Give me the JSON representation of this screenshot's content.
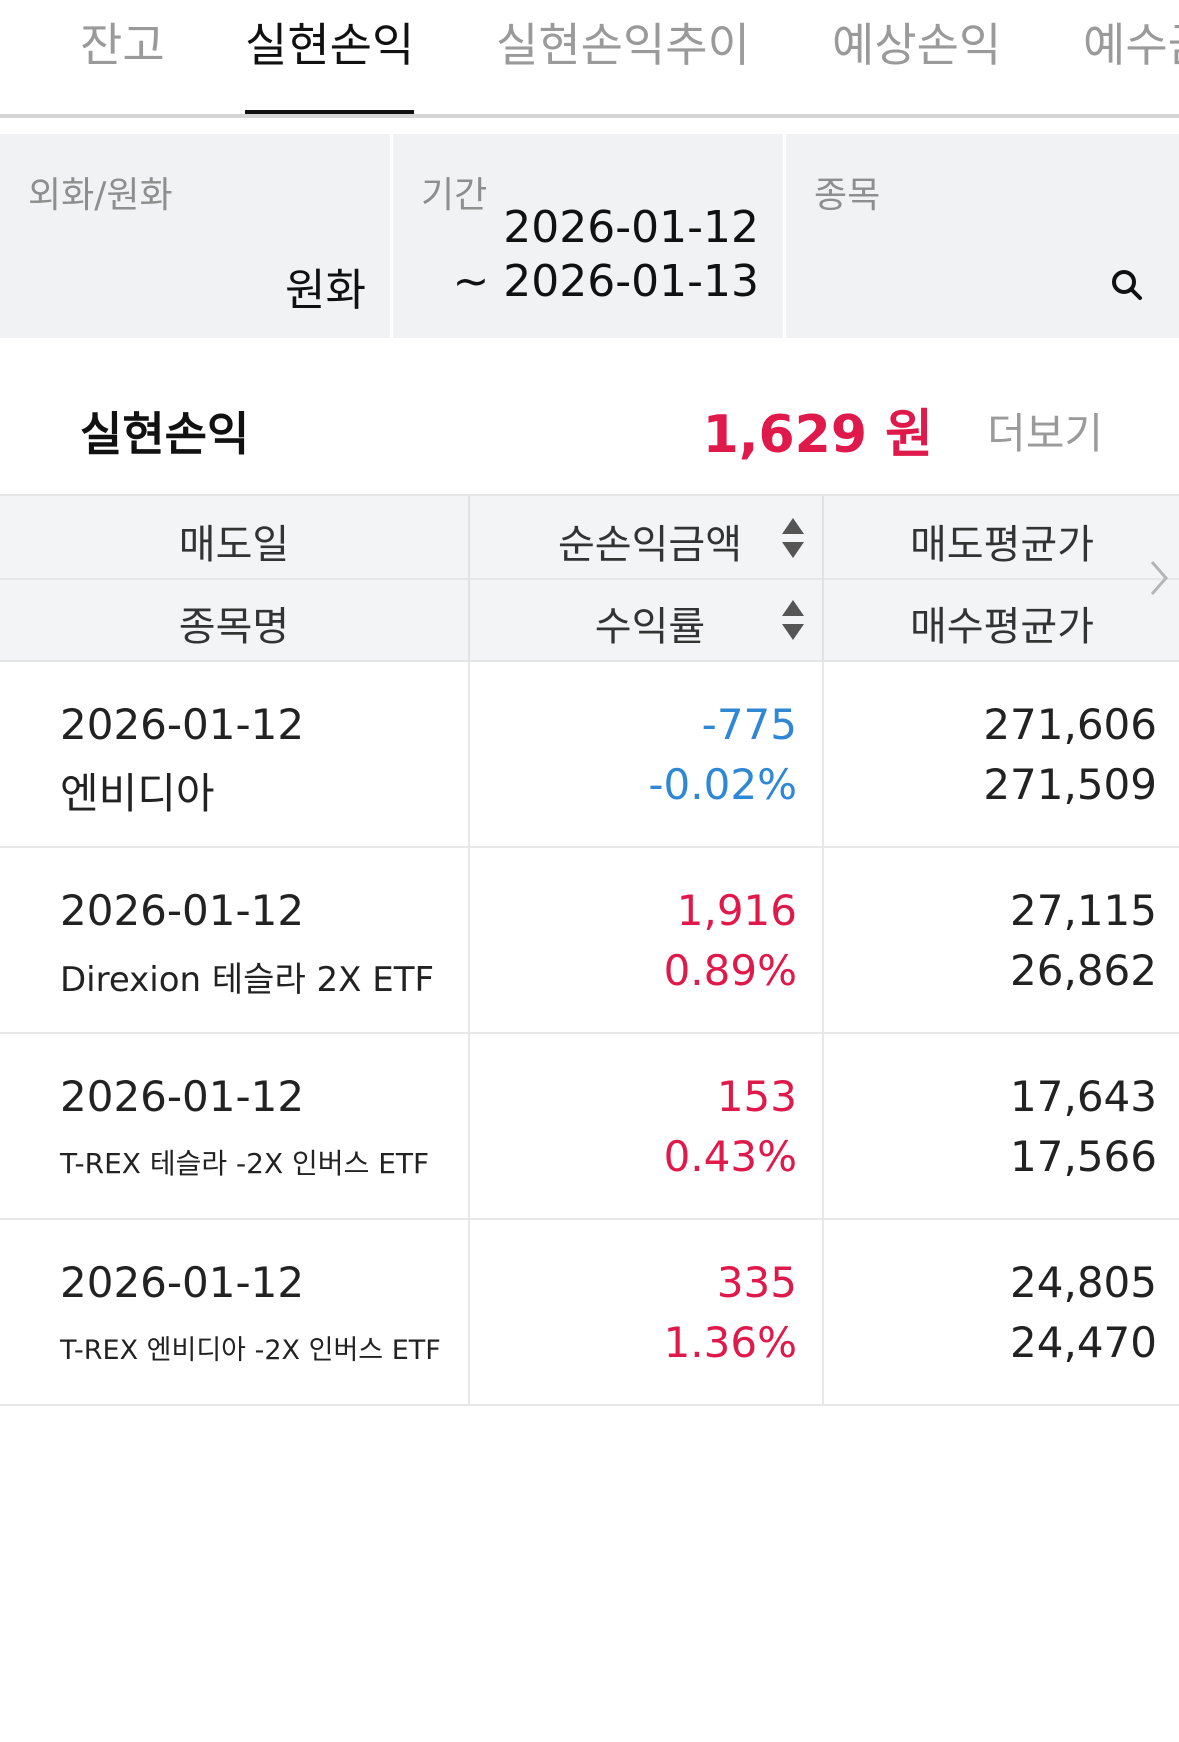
{
  "tabs": [
    {
      "label": "잔고",
      "active": false
    },
    {
      "label": "실현손익",
      "active": true
    },
    {
      "label": "실현손익추이",
      "active": false
    },
    {
      "label": "예상손익",
      "active": false
    },
    {
      "label": "예수금",
      "active": false
    }
  ],
  "filters": {
    "currency": {
      "label": "외화/원화",
      "value": "원화"
    },
    "period": {
      "label": "기간",
      "start": "2026-01-12",
      "end": "~ 2026-01-13"
    },
    "stock": {
      "label": "종목",
      "icon": "search-icon"
    }
  },
  "summary": {
    "title": "실현손익",
    "amount": "1,629 원",
    "more": "더보기",
    "amount_color": "#e0194b"
  },
  "table": {
    "headers": {
      "sell_date": "매도일",
      "net_profit": "순손익금액",
      "sell_avg": "매도평균가",
      "stock_name": "종목명",
      "return_rate": "수익률",
      "buy_avg": "매수평균가"
    },
    "rows": [
      {
        "date": "2026-01-12",
        "name": "엔비디아",
        "profit": "-775",
        "rate": "-0.02%",
        "sell_avg": "271,606",
        "buy_avg": "271,509",
        "sign": "neg"
      },
      {
        "date": "2026-01-12",
        "name": "Direxion 테슬라 2X ETF",
        "profit": "1,916",
        "rate": "0.89%",
        "sell_avg": "27,115",
        "buy_avg": "26,862",
        "sign": "pos"
      },
      {
        "date": "2026-01-12",
        "name": "T-REX 테슬라 -2X 인버스 ETF",
        "profit": "153",
        "rate": "0.43%",
        "sell_avg": "17,643",
        "buy_avg": "17,566",
        "sign": "pos"
      },
      {
        "date": "2026-01-12",
        "name": "T-REX 엔비디아 -2X 인버스 ETF",
        "profit": "335",
        "rate": "1.36%",
        "sell_avg": "24,805",
        "buy_avg": "24,470",
        "sign": "pos"
      }
    ]
  },
  "colors": {
    "positive": "#e0194b",
    "negative": "#2f87d6"
  }
}
